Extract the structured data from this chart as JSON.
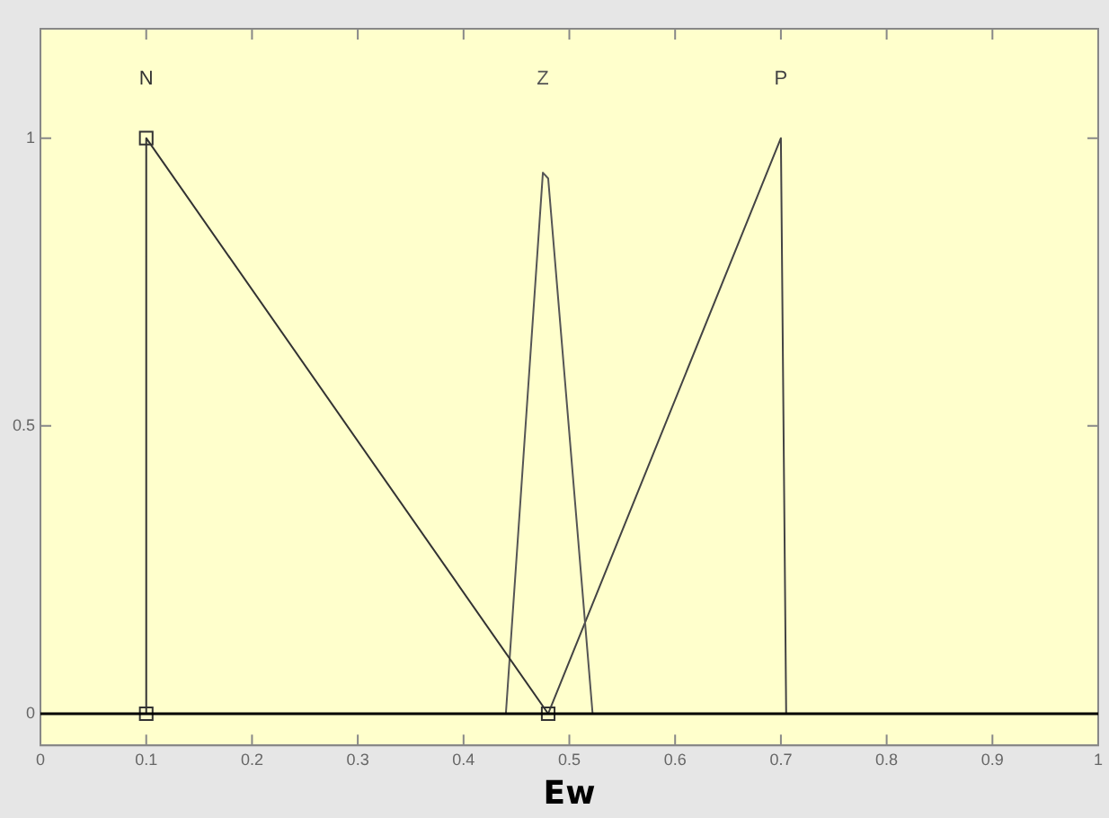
{
  "chart_data": {
    "type": "line",
    "xlabel": "Ew",
    "xlim": [
      0,
      1
    ],
    "ylim": [
      -0.055,
      1.19
    ],
    "xticks": [
      0,
      0.1,
      0.2,
      0.3,
      0.4,
      0.5,
      0.6,
      0.7,
      0.8,
      0.9,
      1
    ],
    "yticks": [
      0,
      0.5,
      1
    ],
    "grid": false,
    "legend": false,
    "line_style": "solid",
    "series": [
      {
        "name": "N",
        "color": "#333333",
        "x": [
          0.1,
          0.1,
          0.48
        ],
        "values": [
          0,
          1,
          0
        ],
        "marker": "square"
      },
      {
        "name": "Z",
        "color": "#555555",
        "x": [
          0.44,
          0.475,
          0.48,
          0.522
        ],
        "values": [
          0,
          0.94,
          0.93,
          0
        ]
      },
      {
        "name": "P",
        "color": "#444444",
        "x": [
          0.48,
          0.7,
          0.705
        ],
        "values": [
          0,
          1,
          0
        ]
      }
    ],
    "ref_lines": [
      {
        "axis": "y",
        "value": 0,
        "color": "#000000"
      }
    ]
  }
}
